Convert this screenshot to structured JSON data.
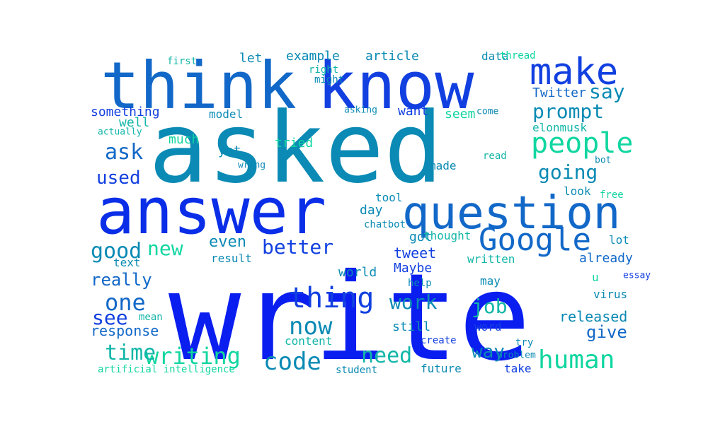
{
  "palette": {
    "blue": "#0a1ef0",
    "royal": "#1240e0",
    "azure": "#1268c8",
    "teal": "#0a8ab4",
    "mint": "#10d6a0",
    "sea": "#12b6a8"
  },
  "words": [
    {
      "text": "write",
      "color": "#0a1ef0"
    },
    {
      "text": "asked",
      "color": "#0a8ab4"
    },
    {
      "text": "think",
      "color": "#1268c8"
    },
    {
      "text": "know",
      "color": "#1240e0"
    },
    {
      "text": "answer",
      "color": "#0a2ee8"
    },
    {
      "text": "question",
      "color": "#1268c8"
    },
    {
      "text": "make",
      "color": "#1240e0"
    },
    {
      "text": "Google",
      "color": "#1268c8"
    },
    {
      "text": "people",
      "color": "#10d6a0"
    },
    {
      "text": "prompt",
      "color": "#0a8ab4"
    },
    {
      "text": "say",
      "color": "#0a8ab4"
    },
    {
      "text": "going",
      "color": "#0a8ab4"
    },
    {
      "text": "thing",
      "color": "#1240e0"
    },
    {
      "text": "human",
      "color": "#10d6a0"
    },
    {
      "text": "code",
      "color": "#0a8ab4"
    },
    {
      "text": "writing",
      "color": "#10d6a0"
    },
    {
      "text": "time",
      "color": "#12b6a8"
    },
    {
      "text": "now",
      "color": "#0a8ab4"
    },
    {
      "text": "need",
      "color": "#12b6a8"
    },
    {
      "text": "work",
      "color": "#0a8ab4"
    },
    {
      "text": "job",
      "color": "#12b6a8"
    },
    {
      "text": "way",
      "color": "#0a8ab4"
    },
    {
      "text": "one",
      "color": "#1268c8"
    },
    {
      "text": "see",
      "color": "#1240e0"
    },
    {
      "text": "good",
      "color": "#0a8ab4"
    },
    {
      "text": "new",
      "color": "#10d6a0"
    },
    {
      "text": "better",
      "color": "#1240e0"
    },
    {
      "text": "even",
      "color": "#0a8ab4"
    },
    {
      "text": "ask",
      "color": "#1268c8"
    },
    {
      "text": "used",
      "color": "#1240e0"
    },
    {
      "text": "really",
      "color": "#1268c8"
    },
    {
      "text": "give",
      "color": "#1268c8"
    },
    {
      "text": "response",
      "color": "#1268c8"
    },
    {
      "text": "released",
      "color": "#0a8ab4"
    },
    {
      "text": "something",
      "color": "#1240e0"
    },
    {
      "text": "tweet",
      "color": "#1240e0"
    },
    {
      "text": "want",
      "color": "#1240e0"
    },
    {
      "text": "seem",
      "color": "#10d6a0"
    },
    {
      "text": "Twitter",
      "color": "#1268c8"
    },
    {
      "text": "elonmusk",
      "color": "#12b6a8"
    },
    {
      "text": "data",
      "color": "#0a8ab4"
    },
    {
      "text": "article",
      "color": "#0a8ab4"
    },
    {
      "text": "example",
      "color": "#0a8ab4"
    },
    {
      "text": "let",
      "color": "#0a8ab4"
    },
    {
      "text": "model",
      "color": "#0a8ab4"
    },
    {
      "text": "well",
      "color": "#12b6a8"
    },
    {
      "text": "much",
      "color": "#10d6a0"
    },
    {
      "text": "yet",
      "color": "#0a8ab4"
    },
    {
      "text": "tried",
      "color": "#10d6a0"
    },
    {
      "text": "made",
      "color": "#0a8ab4"
    },
    {
      "text": "day",
      "color": "#0a8ab4"
    },
    {
      "text": "tool",
      "color": "#0a8ab4"
    },
    {
      "text": "got",
      "color": "#0a8ab4"
    },
    {
      "text": "thought",
      "color": "#12b6a8"
    },
    {
      "text": "lot",
      "color": "#0a8ab4"
    },
    {
      "text": "look",
      "color": "#0a8ab4"
    },
    {
      "text": "already",
      "color": "#1268c8"
    },
    {
      "text": "world",
      "color": "#0a8ab4"
    },
    {
      "text": "Maybe",
      "color": "#1240e0"
    },
    {
      "text": "written",
      "color": "#12b6a8"
    },
    {
      "text": "result",
      "color": "#0a8ab4"
    },
    {
      "text": "text",
      "color": "#0a8ab4"
    },
    {
      "text": "may",
      "color": "#0a8ab4"
    },
    {
      "text": "virus",
      "color": "#0a8ab4"
    },
    {
      "text": "still",
      "color": "#0a8ab4"
    },
    {
      "text": "word",
      "color": "#1240e0"
    },
    {
      "text": "content",
      "color": "#12b6a8"
    },
    {
      "text": "take",
      "color": "#1240e0"
    },
    {
      "text": "future",
      "color": "#0a8ab4"
    },
    {
      "text": "first",
      "color": "#12b6a8"
    },
    {
      "text": "right",
      "color": "#12b6a8"
    },
    {
      "text": "might",
      "color": "#0a8ab4"
    },
    {
      "text": "thread",
      "color": "#10d6a0"
    },
    {
      "text": "asking",
      "color": "#0a8ab4"
    },
    {
      "text": "come",
      "color": "#0a8ab4"
    },
    {
      "text": "actually",
      "color": "#12b6a8"
    },
    {
      "text": "wrong",
      "color": "#0a8ab4"
    },
    {
      "text": "read",
      "color": "#12b6a8"
    },
    {
      "text": "bot",
      "color": "#0a8ab4"
    },
    {
      "text": "free",
      "color": "#10d6a0"
    },
    {
      "text": "chatbot",
      "color": "#0a8ab4"
    },
    {
      "text": "mean",
      "color": "#12b6a8"
    },
    {
      "text": "help",
      "color": "#0a8ab4"
    },
    {
      "text": "u",
      "color": "#10d6a0"
    },
    {
      "text": "essay",
      "color": "#1240e0"
    },
    {
      "text": "create",
      "color": "#1240e0"
    },
    {
      "text": "try",
      "color": "#0a8ab4"
    },
    {
      "text": "problem",
      "color": "#0a8ab4"
    },
    {
      "text": "artificial intelligence",
      "color": "#10d6a0"
    },
    {
      "text": "student",
      "color": "#0a8ab4"
    }
  ]
}
